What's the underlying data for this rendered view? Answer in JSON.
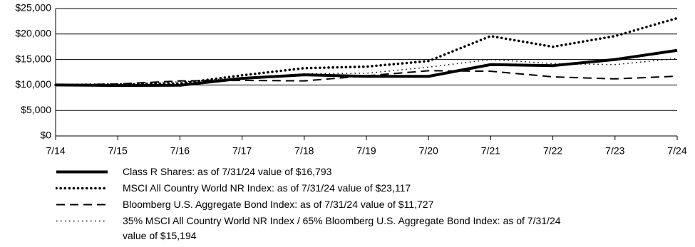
{
  "chart_data": {
    "type": "line",
    "categories": [
      "7/14",
      "7/15",
      "7/16",
      "7/17",
      "7/18",
      "7/19",
      "7/20",
      "7/21",
      "7/22",
      "7/23",
      "7/24"
    ],
    "ylim": [
      0,
      25000
    ],
    "yticks": [
      {
        "value": 0,
        "label": "$0"
      },
      {
        "value": 5000,
        "label": "$5,000"
      },
      {
        "value": 10000,
        "label": "$10,000"
      },
      {
        "value": 15000,
        "label": "$15,000"
      },
      {
        "value": 20000,
        "label": "$20,000"
      },
      {
        "value": 25000,
        "label": "$25,000"
      }
    ],
    "grid": true,
    "series": [
      {
        "name": "Class R Shares: as of 7/31/24 value of $16,793",
        "color": "#000000",
        "line_style": "solid",
        "values": [
          10000,
          9900,
          9950,
          11300,
          12000,
          11700,
          11700,
          14000,
          13800,
          15000,
          16793
        ]
      },
      {
        "name": "MSCI All Country World NR Index: as of 7/31/24 value of $23,117",
        "color": "#000000",
        "line_style": "bold-dotted",
        "values": [
          10000,
          10100,
          10300,
          11900,
          13300,
          13600,
          14700,
          19600,
          17500,
          19600,
          23117
        ]
      },
      {
        "name": "Bloomberg U.S. Aggregate Bond Index: as of 7/31/24 value of $11,727",
        "color": "#000000",
        "line_style": "dashed",
        "values": [
          10000,
          10200,
          10800,
          10900,
          10800,
          11800,
          12800,
          12700,
          11600,
          11200,
          11727
        ]
      },
      {
        "name": "35% MSCI All Country World NR Index / 65% Bloomberg U.S. Aggregate Bond Index: as of 7/31/24 value of $15,194",
        "color": "#000000",
        "line_style": "fine-dotted",
        "values": [
          10000,
          10100,
          10600,
          11400,
          12200,
          12300,
          13500,
          15000,
          14200,
          14000,
          15194
        ]
      }
    ]
  }
}
